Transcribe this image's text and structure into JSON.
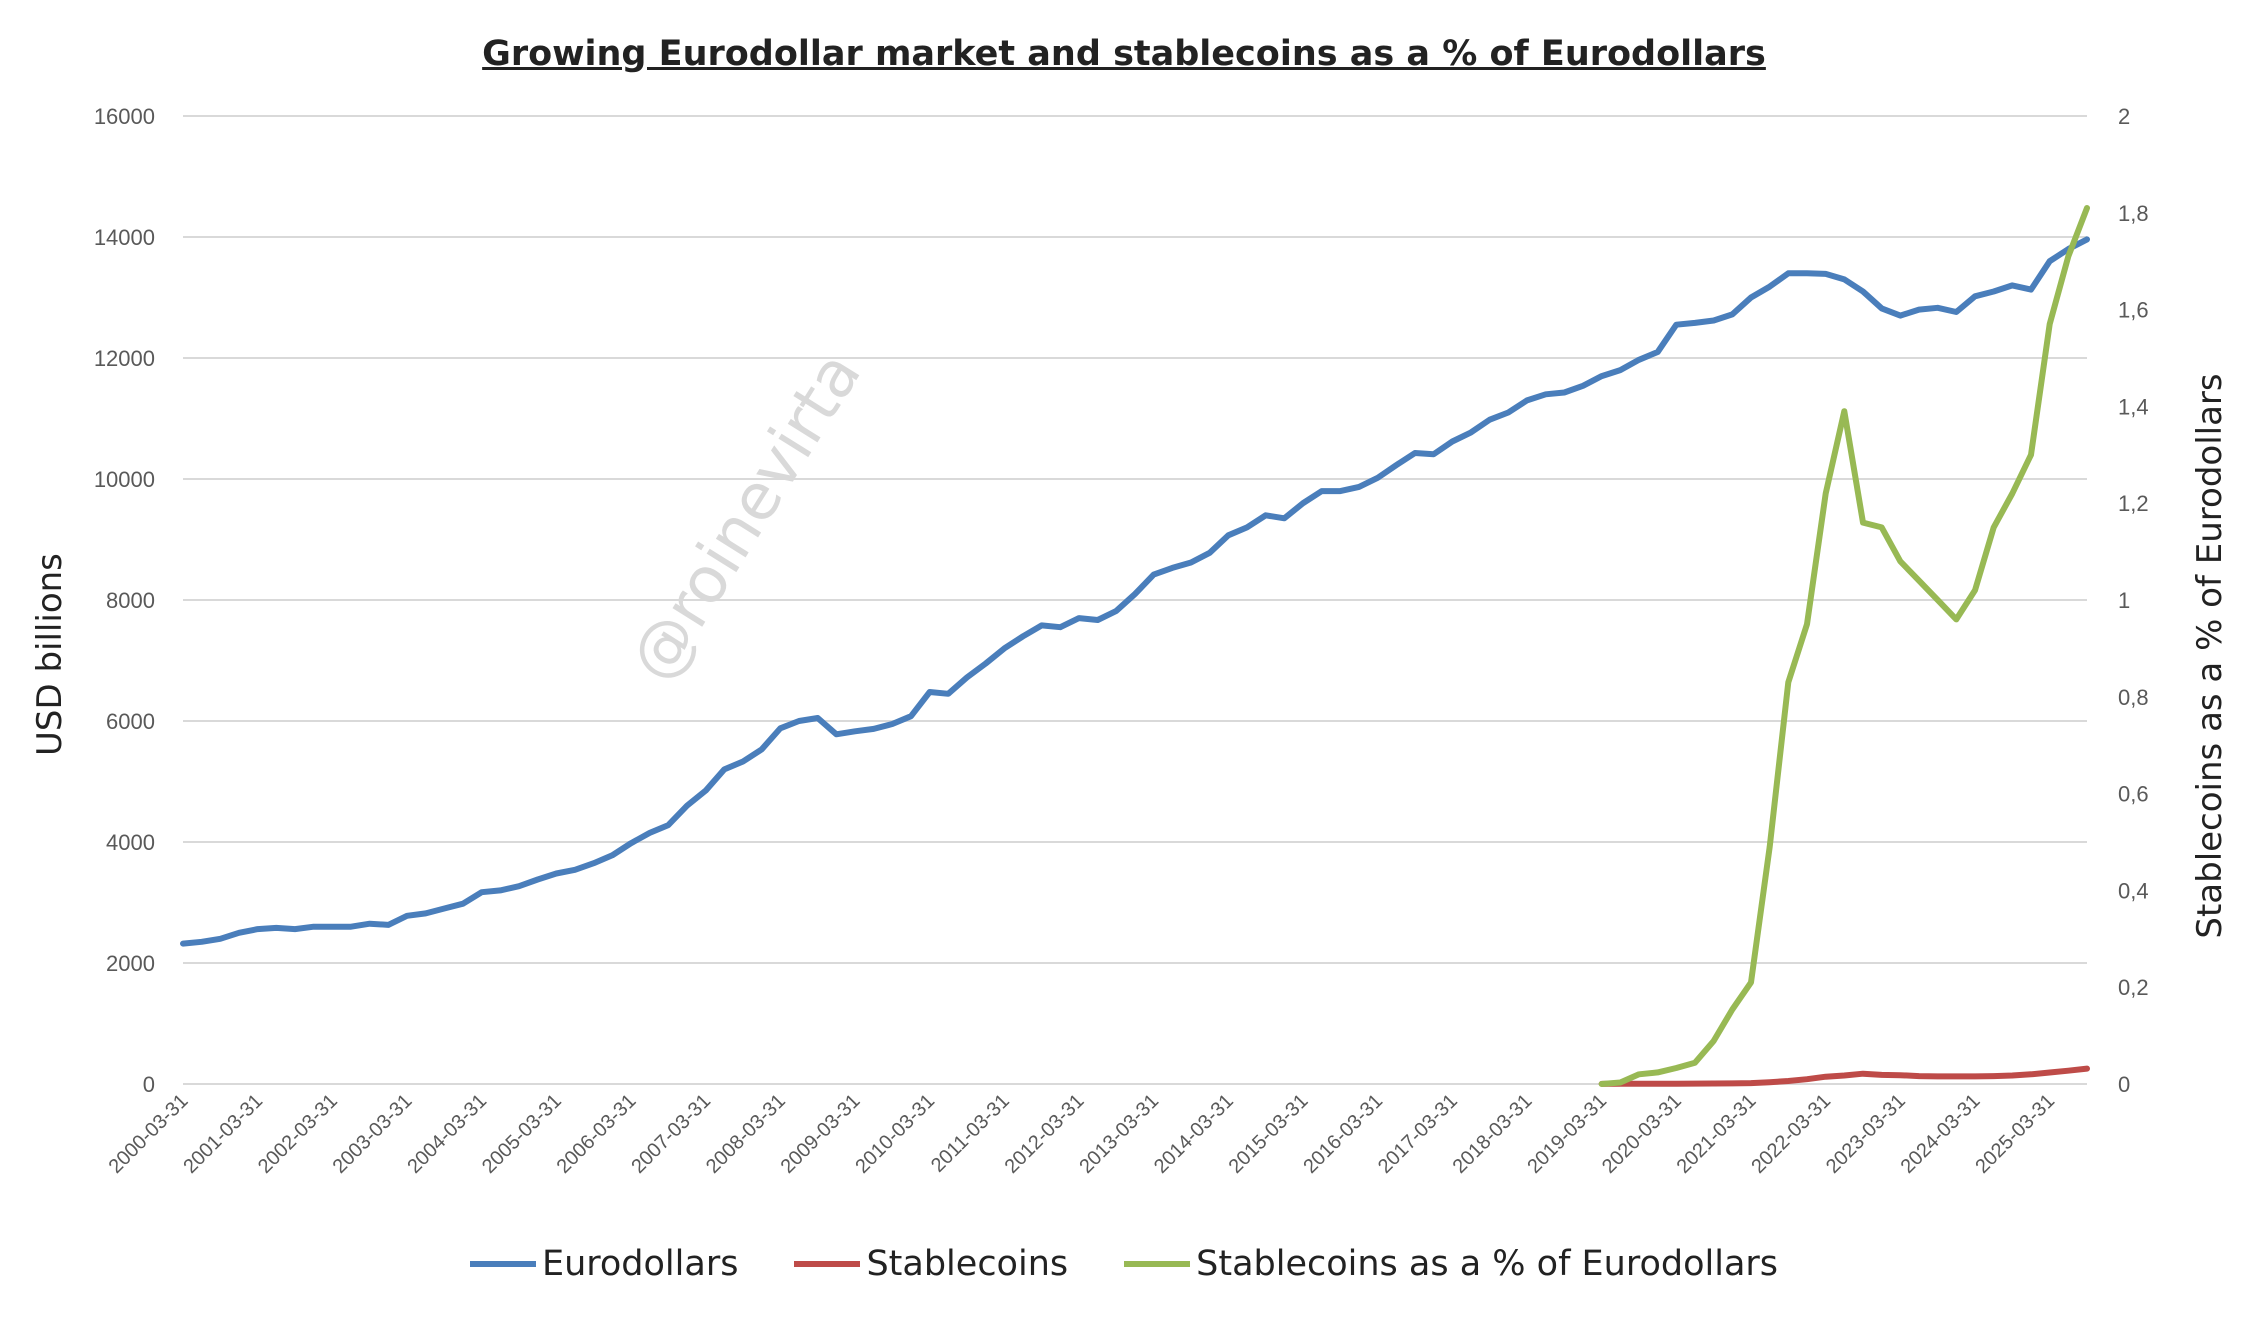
{
  "chart_data": {
    "type": "line",
    "title": "Growing Eurodollar market and stablecoins as a % of Eurodollars",
    "ylabel": "USD billions",
    "ylabel_right": "Stablecoins as a % of Eurodollars",
    "ylim": [
      0,
      16000
    ],
    "ylim_right": [
      0,
      2
    ],
    "yticks": [
      "0",
      "2000",
      "4000",
      "6000",
      "8000",
      "10000",
      "12000",
      "14000",
      "16000"
    ],
    "yticks_right": [
      "0",
      "0,2",
      "0,4",
      "0,6",
      "0,8",
      "1",
      "1,2",
      "1,4",
      "1,6",
      "1,8",
      "2"
    ],
    "xticks": [
      "2000-03-31",
      "2001-03-31",
      "2002-03-31",
      "2003-03-31",
      "2004-03-31",
      "2005-03-31",
      "2006-03-31",
      "2007-03-31",
      "2008-03-31",
      "2009-03-31",
      "2010-03-31",
      "2011-03-31",
      "2012-03-31",
      "2013-03-31",
      "2014-03-31",
      "2015-03-31",
      "2016-03-31",
      "2017-03-31",
      "2018-03-31",
      "2019-03-31",
      "2020-03-31",
      "2021-03-31",
      "2022-03-31",
      "2023-03-31",
      "2024-03-31",
      "2025-03-31"
    ],
    "x_start": "2000-03-31",
    "x_frequency": "quarterly",
    "grid": true,
    "legend_placement": "bottom",
    "watermark": "@roinevirta",
    "series": [
      {
        "name": "Eurodollars",
        "axis": "left",
        "color": "#4a7ebb",
        "start": "2000-03-31",
        "values": [
          2320,
          2350,
          2400,
          2500,
          2560,
          2580,
          2560,
          2600,
          2600,
          2600,
          2650,
          2630,
          2780,
          2820,
          2900,
          2980,
          3170,
          3200,
          3270,
          3380,
          3480,
          3540,
          3650,
          3780,
          3980,
          4150,
          4280,
          4600,
          4850,
          5200,
          5330,
          5530,
          5880,
          6000,
          6050,
          5780,
          5830,
          5870,
          5950,
          6080,
          6480,
          6450,
          6720,
          6950,
          7200,
          7400,
          7580,
          7550,
          7700,
          7670,
          7820,
          8100,
          8420,
          8530,
          8620,
          8780,
          9070,
          9200,
          9400,
          9350,
          9600,
          9800,
          9800,
          9870,
          10020,
          10230,
          10430,
          10410,
          10620,
          10770,
          10980,
          11100,
          11300,
          11400,
          11430,
          11540,
          11700,
          11800,
          11970,
          12100,
          12550,
          12580,
          12620,
          12720,
          13000,
          13180,
          13400,
          13400,
          13390,
          13300,
          13100,
          12820,
          12700,
          12800,
          12830,
          12760,
          13020,
          13100,
          13200,
          13130,
          13600,
          13800,
          13960
        ]
      },
      {
        "name": "Stablecoins",
        "axis": "left",
        "color": "#be4b48",
        "start": "2019-03-31",
        "values": [
          2,
          3,
          4,
          5,
          5,
          6,
          8,
          10,
          15,
          30,
          50,
          80,
          120,
          140,
          170,
          150,
          145,
          130,
          125,
          125,
          125,
          130,
          140,
          160,
          190,
          220,
          255
        ]
      },
      {
        "name": "Stablecoins as a % of Eurodollars",
        "axis": "right",
        "color": "#98b954",
        "start": "2019-03-31",
        "values": [
          0,
          0.003,
          0.02,
          0.024,
          0.033,
          0.044,
          0.089,
          0.154,
          0.21,
          0.49,
          0.83,
          0.95,
          1.22,
          1.39,
          1.16,
          1.15,
          1.08,
          1.04,
          1.0,
          0.96,
          1.02,
          1.15,
          1.22,
          1.3,
          1.57,
          1.71,
          1.81
        ]
      }
    ]
  }
}
